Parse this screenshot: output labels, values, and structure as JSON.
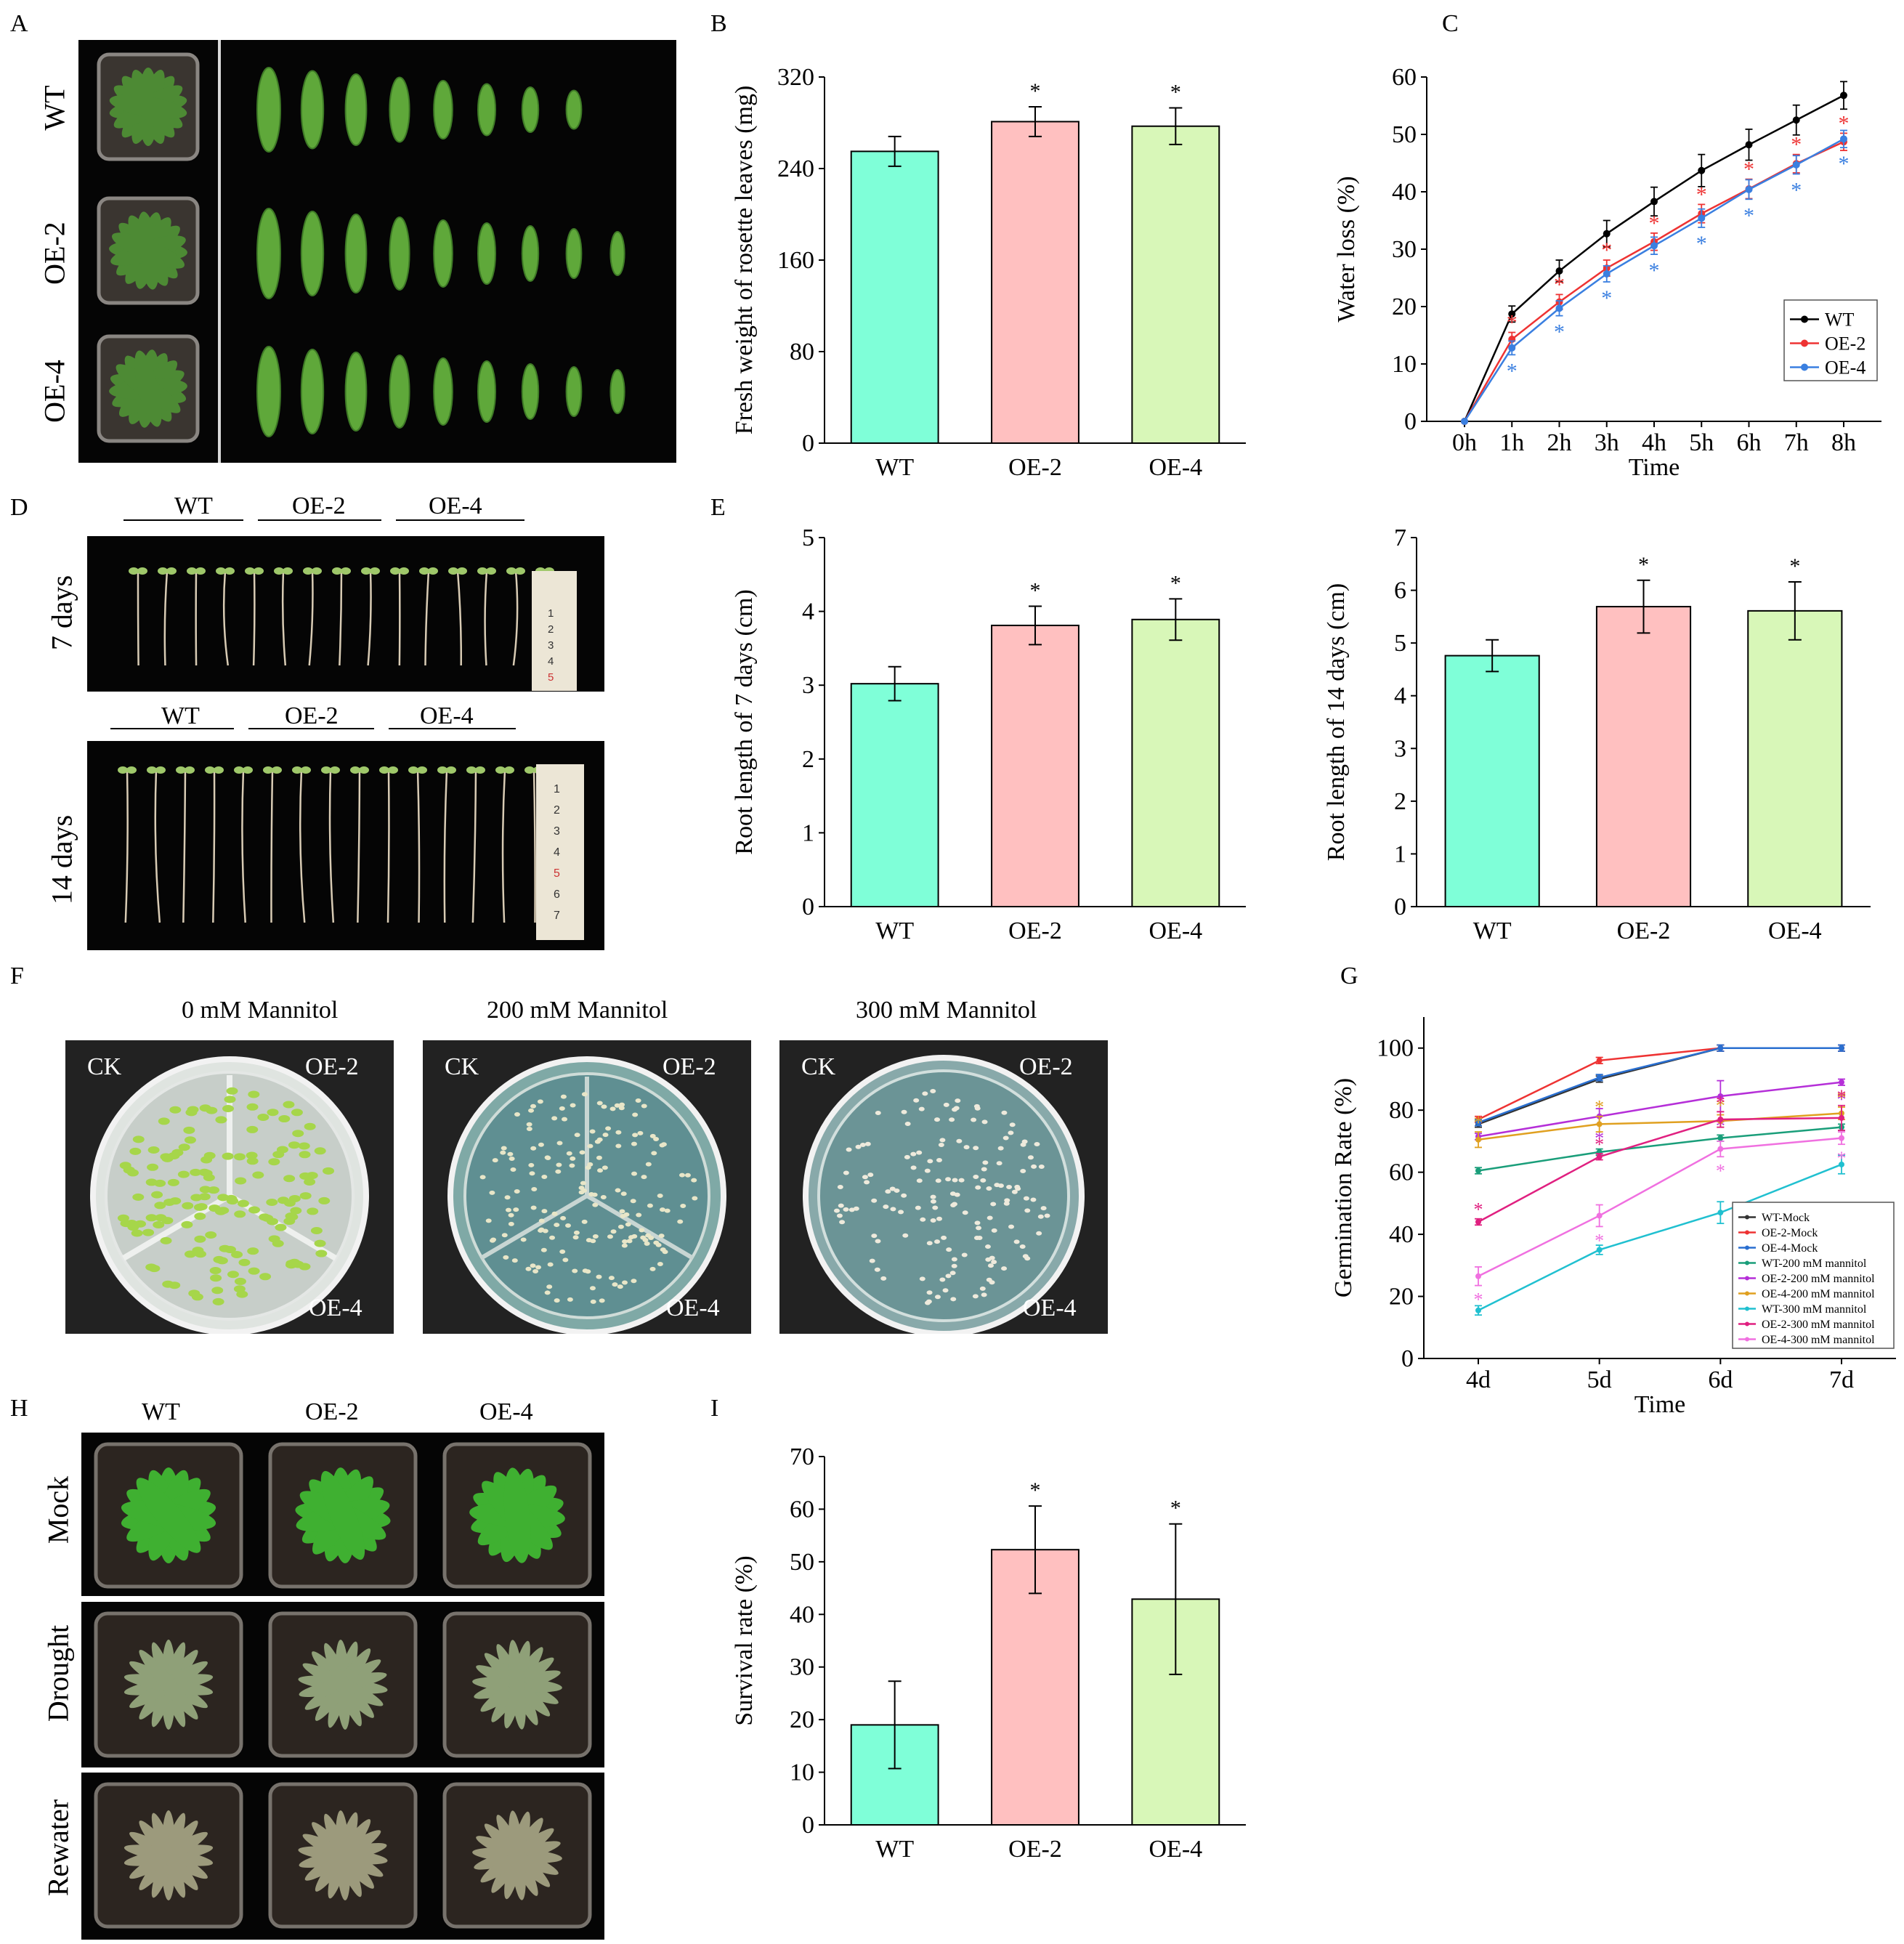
{
  "panel_letters": [
    "A",
    "B",
    "C",
    "D",
    "E",
    "F",
    "G",
    "H",
    "I"
  ],
  "photo_A": {
    "rows": [
      "WT",
      "OE-2",
      "OE-4"
    ],
    "leaf_counts": [
      8,
      9,
      9
    ]
  },
  "photo_D": {
    "groups": [
      "WT",
      "OE-2",
      "OE-4"
    ],
    "rows": [
      "7 days",
      "14 days"
    ],
    "ruler_7": [
      "1",
      "2",
      "3",
      "4",
      "5"
    ],
    "ruler_14": [
      "1",
      "2",
      "3",
      "4",
      "5",
      "6",
      "7"
    ]
  },
  "photo_F": {
    "titles": [
      "0 mM Mannitol",
      "200 mM Mannitol",
      "300 mM Mannitol"
    ],
    "plate_labels": [
      "CK",
      "OE-2",
      "OE-4"
    ]
  },
  "photo_H": {
    "columns": [
      "WT",
      "OE-2",
      "OE-4"
    ],
    "rows": [
      "Mock",
      "Drought",
      "Rewater"
    ]
  },
  "colors": {
    "wt": "#7fffd8",
    "oe2": "#ffc0c0",
    "oe4": "#d8f7b8",
    "black": "#000000",
    "red": "#ee3333",
    "blue": "#3a7fe0"
  },
  "chart_data": [
    {
      "id": "B",
      "type": "bar",
      "categories": [
        "WT",
        "OE-2",
        "OE-4"
      ],
      "values": [
        255,
        281,
        277
      ],
      "errors": [
        13,
        13,
        16
      ],
      "sig": [
        "",
        "*",
        "*"
      ],
      "ylabel": "Fresh weight of rosette leaves (mg)",
      "xlabel": "",
      "ylim": [
        0,
        320
      ],
      "yticks": [
        0,
        80,
        160,
        240,
        320
      ]
    },
    {
      "id": "C",
      "type": "line",
      "x": [
        "0h",
        "1h",
        "2h",
        "3h",
        "4h",
        "5h",
        "6h",
        "7h",
        "8h"
      ],
      "xlabel": "Time",
      "ylabel": "Water loss (%)",
      "ylim": [
        0,
        60
      ],
      "yticks": [
        0,
        10,
        20,
        30,
        40,
        50,
        60
      ],
      "legend_position": "bottom-right",
      "series": [
        {
          "name": "WT",
          "color": "#000000",
          "values": [
            0,
            18.7,
            26.2,
            32.7,
            38.3,
            43.7,
            48.2,
            52.5,
            56.8
          ],
          "errors": [
            0,
            1.4,
            1.9,
            2.3,
            2.5,
            2.8,
            2.7,
            2.6,
            2.4
          ],
          "sig": [
            "",
            "",
            "",
            "",
            "",
            "",
            "",
            "",
            ""
          ]
        },
        {
          "name": "OE-2",
          "color": "#ee3333",
          "values": [
            0,
            14.3,
            20.8,
            26.7,
            31.3,
            36.2,
            40.5,
            44.9,
            48.7
          ],
          "errors": [
            0,
            1.2,
            1.3,
            1.4,
            1.5,
            1.6,
            1.7,
            1.6,
            1.5
          ],
          "sig": [
            "",
            "*",
            "*",
            "*",
            "*",
            "*",
            "*",
            "*",
            "*"
          ]
        },
        {
          "name": "OE-4",
          "color": "#3a7fe0",
          "values": [
            0,
            12.8,
            19.7,
            25.7,
            30.6,
            35.4,
            40.4,
            44.7,
            49.2
          ],
          "errors": [
            0,
            1.2,
            1.3,
            1.4,
            1.5,
            1.6,
            1.7,
            1.6,
            1.5
          ],
          "sig": [
            "",
            "*",
            "*",
            "*",
            "*",
            "*",
            "*",
            "*",
            "*"
          ]
        }
      ]
    },
    {
      "id": "E1",
      "type": "bar",
      "categories": [
        "WT",
        "OE-2",
        "OE-4"
      ],
      "values": [
        3.02,
        3.81,
        3.89
      ],
      "errors": [
        0.23,
        0.26,
        0.28
      ],
      "sig": [
        "",
        "*",
        "*"
      ],
      "ylabel": "Root length of 7 days (cm)",
      "xlabel": "",
      "ylim": [
        0,
        5
      ],
      "yticks": [
        0,
        1,
        2,
        3,
        4,
        5
      ]
    },
    {
      "id": "E2",
      "type": "bar",
      "categories": [
        "WT",
        "OE-2",
        "OE-4"
      ],
      "values": [
        4.76,
        5.69,
        5.61
      ],
      "errors": [
        0.3,
        0.5,
        0.55
      ],
      "sig": [
        "",
        "*",
        "*"
      ],
      "ylabel": "Root length of 14 days (cm)",
      "xlabel": "",
      "ylim": [
        0,
        7
      ],
      "yticks": [
        0,
        1,
        2,
        3,
        4,
        5,
        6,
        7
      ]
    },
    {
      "id": "G",
      "type": "line",
      "x": [
        "4d",
        "5d",
        "6d",
        "7d"
      ],
      "xlabel": "Time",
      "ylabel": "Germination Rate (%)",
      "ylim": [
        0,
        110
      ],
      "yticks": [
        0,
        20,
        40,
        60,
        80,
        100
      ],
      "legend_position": "bottom-right",
      "series": [
        {
          "name": "WT-Mock",
          "color": "#333333",
          "values": [
            75.5,
            90,
            100,
            100
          ],
          "errors": [
            1,
            1,
            1,
            1
          ],
          "sig": [
            "",
            "",
            "",
            ""
          ]
        },
        {
          "name": "OE-2-Mock",
          "color": "#ee3333",
          "values": [
            77,
            96,
            100,
            100
          ],
          "errors": [
            1,
            1,
            1,
            1
          ],
          "sig": [
            "",
            "",
            "",
            ""
          ]
        },
        {
          "name": "OE-4-Mock",
          "color": "#2a6fd0",
          "values": [
            76,
            90.5,
            100,
            100
          ],
          "errors": [
            1,
            1,
            1,
            1
          ],
          "sig": [
            "",
            "",
            "",
            ""
          ]
        },
        {
          "name": "WT-200 mM mannitol",
          "color": "#1a9e7a",
          "values": [
            60.5,
            66.5,
            71,
            74.5
          ],
          "errors": [
            1,
            1,
            1,
            1
          ],
          "sig": [
            "",
            "",
            "",
            ""
          ]
        },
        {
          "name": "OE-2-200 mM mannitol",
          "color": "#b52fd8",
          "values": [
            71.5,
            78,
            84.5,
            89
          ],
          "errors": [
            1,
            2.5,
            5,
            1
          ],
          "sig": [
            "",
            "*",
            "*",
            "*"
          ]
        },
        {
          "name": "OE-4-200 mM mannitol",
          "color": "#e0a020",
          "values": [
            70.5,
            75.5,
            76.5,
            79
          ],
          "errors": [
            2.5,
            2.5,
            2,
            2
          ],
          "sig": [
            "*",
            "*",
            "*",
            "*"
          ]
        },
        {
          "name": "WT-300 mM mannitol",
          "color": "#20c0d0",
          "values": [
            15.5,
            35,
            47,
            62.5
          ],
          "errors": [
            1.5,
            1.5,
            3.5,
            3
          ],
          "sig": [
            "",
            "",
            "",
            ""
          ]
        },
        {
          "name": "OE-2-300 mM mannitol",
          "color": "#e02080",
          "values": [
            44,
            65,
            77,
            77.5
          ],
          "errors": [
            1,
            1,
            2.5,
            4
          ],
          "sig": [
            "*",
            "*",
            "*",
            "*"
          ]
        },
        {
          "name": "OE-4-300 mM mannitol",
          "color": "#f070e0",
          "values": [
            26.5,
            46,
            67.5,
            71
          ],
          "errors": [
            3,
            3.5,
            2.5,
            2
          ],
          "sig": [
            "*",
            "*",
            "*",
            "*"
          ]
        }
      ]
    },
    {
      "id": "I",
      "type": "bar",
      "categories": [
        "WT",
        "OE-2",
        "OE-4"
      ],
      "values": [
        19,
        52.3,
        42.9
      ],
      "errors": [
        8.3,
        8.3,
        14.3
      ],
      "sig": [
        "",
        "*",
        "*"
      ],
      "ylabel": "Survival rate (%)",
      "xlabel": "",
      "ylim": [
        0,
        70
      ],
      "yticks": [
        0,
        10,
        20,
        30,
        40,
        50,
        60,
        70
      ]
    }
  ]
}
